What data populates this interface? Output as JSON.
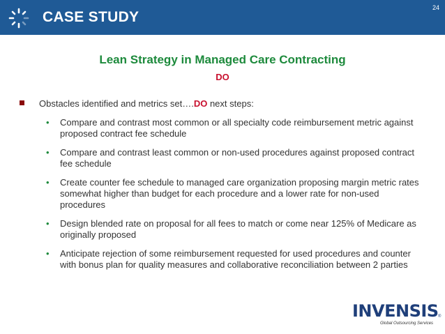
{
  "header": {
    "title": "CASE STUDY",
    "page_number": "24",
    "logo_icon": "spinner-icon",
    "background_color": "#1f5a96"
  },
  "slide": {
    "title": "Lean Strategy in Managed Care Contracting",
    "section_label": "DO",
    "main_bullet": {
      "prefix": "Obstacles identified and metrics set….",
      "highlight": "DO",
      "suffix": " next steps:"
    },
    "sub_bullets": [
      "Compare and contrast most common or all specialty code reimbursement metric against proposed contract fee schedule",
      "Compare and contrast least common or non-used procedures against proposed contract fee schedule",
      "Create counter fee schedule to managed care organization proposing margin metric rates somewhat higher than budget for each procedure and a lower rate for non-used procedures",
      "Design blended rate on proposal for all fees to match or come near 125% of Medicare as originally proposed",
      "Anticipate rejection of some reimbursement requested for used procedures and counter with bonus plan for quality measures and collaborative reconciliation between 2 parties"
    ]
  },
  "brand": {
    "name": "INVENSIS",
    "tagline": "Global Outsourcing Services",
    "registered": "®"
  },
  "colors": {
    "title_green": "#1d8a3c",
    "accent_red": "#c8102e",
    "bullet_dark_red": "#8a0a0a"
  }
}
